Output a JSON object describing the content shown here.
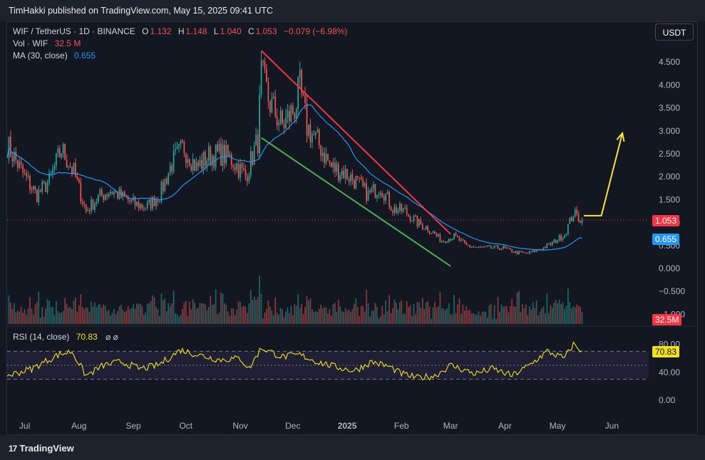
{
  "header": {
    "published_text": "TimHakki published on TradingView.com, May 15, 2025 09:41 UTC"
  },
  "legend": {
    "symbol": "WIF / TetherUS · 1D · BINANCE",
    "o_label": "O",
    "o_value": "1.132",
    "h_label": "H",
    "h_value": "1.148",
    "l_label": "L",
    "l_value": "1.040",
    "c_label": "C",
    "c_value": "1.053",
    "change": "−0.079 (−6.98%)",
    "vol_label": "Vol · WIF",
    "vol_value": "32.5 M",
    "ma_label": "MA (30, close)",
    "ma_value": "0.655",
    "rsi_label": "RSI (14, close)",
    "rsi_value": "70.83",
    "rsi_icons": "⌀ ⌀"
  },
  "currency_button": "USDT",
  "badges": {
    "price": "1.053",
    "ma": "0.655",
    "volume": "32.5M",
    "rsi": "70.83"
  },
  "footer": {
    "brand": "TradingView",
    "logo": "17"
  },
  "colors": {
    "up": "#26a69a",
    "down": "#ef5350",
    "ma": "#2962ff",
    "rsi": "#f3e01d",
    "red_line": "#f23645",
    "green_line": "#4caf50",
    "arrow": "#f5e33b"
  },
  "chart_data": [
    {
      "type": "candlestick",
      "title": "WIF / TetherUS · 1D · BINANCE",
      "x_ticks": [
        "Jul",
        "Aug",
        "Sep",
        "Oct",
        "Nov",
        "Dec",
        "2025",
        "Feb",
        "Mar",
        "Apr",
        "May",
        "Jun"
      ],
      "y_ticks": [
        "4.500",
        "4.000",
        "3.500",
        "3.000",
        "2.500",
        "2.000",
        "1.500",
        "1.000",
        "0.500",
        "0.000",
        "−0.500",
        "−1.000"
      ],
      "ylim": [
        -1.0,
        4.8
      ],
      "close_series": {
        "dates": [
          "2024-06-21",
          "2024-07-01",
          "2024-07-08",
          "2024-07-15",
          "2024-07-22",
          "2024-07-29",
          "2024-08-05",
          "2024-08-12",
          "2024-08-19",
          "2024-08-26",
          "2024-09-02",
          "2024-09-09",
          "2024-09-16",
          "2024-09-23",
          "2024-09-30",
          "2024-10-07",
          "2024-10-14",
          "2024-10-21",
          "2024-10-28",
          "2024-11-04",
          "2024-11-11",
          "2024-11-13",
          "2024-11-18",
          "2024-11-25",
          "2024-12-02",
          "2024-12-05",
          "2024-12-09",
          "2024-12-16",
          "2024-12-23",
          "2024-12-30",
          "2025-01-06",
          "2025-01-13",
          "2025-01-20",
          "2025-01-27",
          "2025-02-03",
          "2025-02-10",
          "2025-02-17",
          "2025-02-24",
          "2025-03-03",
          "2025-03-10",
          "2025-03-17",
          "2025-03-24",
          "2025-03-31",
          "2025-04-07",
          "2025-04-14",
          "2025-04-21",
          "2025-04-28",
          "2025-05-05",
          "2025-05-10",
          "2025-05-15"
        ],
        "close": [
          2.7,
          2.0,
          1.6,
          1.9,
          2.6,
          2.1,
          1.25,
          1.55,
          1.7,
          1.55,
          1.4,
          1.35,
          1.6,
          2.3,
          2.65,
          2.2,
          2.45,
          2.5,
          2.35,
          2.0,
          2.8,
          4.2,
          3.6,
          3.1,
          3.5,
          3.9,
          3.1,
          2.7,
          2.2,
          2.1,
          1.9,
          1.6,
          1.8,
          1.3,
          1.25,
          1.0,
          0.85,
          0.6,
          0.7,
          0.5,
          0.45,
          0.45,
          0.45,
          0.35,
          0.33,
          0.42,
          0.55,
          0.75,
          1.2,
          1.053
        ]
      },
      "ma30": {
        "name": "MA (30, close)",
        "last": 0.655
      },
      "last_close": 1.053,
      "drawings": {
        "red_trendline": {
          "from": [
            "2024-11-13",
            4.75
          ],
          "to": [
            "2025-03-01",
            0.75
          ]
        },
        "green_trendline": {
          "from": [
            "2024-11-13",
            2.85
          ],
          "to": [
            "2025-03-01",
            0.05
          ]
        },
        "yellow_arrow": [
          [
            "2025-05-16",
            1.15
          ],
          [
            "2025-05-26",
            1.15
          ],
          [
            "2025-06-07",
            2.95
          ]
        ]
      }
    },
    {
      "type": "bar",
      "name": "Vol · WIF",
      "last": "32.5 M"
    },
    {
      "type": "line",
      "name": "RSI (14, close)",
      "y_ticks": [
        "80.00",
        "40.00",
        "0.00"
      ],
      "bands": [
        70,
        50,
        30
      ],
      "last": 70.83,
      "series_points": {
        "dates": [
          "2024-06-21",
          "2024-07-05",
          "2024-07-20",
          "2024-07-28",
          "2024-08-05",
          "2024-08-15",
          "2024-08-25",
          "2024-09-05",
          "2024-09-15",
          "2024-09-28",
          "2024-10-08",
          "2024-10-20",
          "2024-11-01",
          "2024-11-06",
          "2024-11-13",
          "2024-11-25",
          "2024-12-05",
          "2024-12-15",
          "2024-12-25",
          "2025-01-05",
          "2025-01-15",
          "2025-01-25",
          "2025-02-01",
          "2025-02-10",
          "2025-02-20",
          "2025-03-01",
          "2025-03-15",
          "2025-03-25",
          "2025-04-05",
          "2025-04-15",
          "2025-04-25",
          "2025-05-05",
          "2025-05-10",
          "2025-05-15"
        ],
        "values": [
          35,
          45,
          65,
          70,
          35,
          50,
          55,
          45,
          50,
          72,
          65,
          58,
          60,
          45,
          75,
          62,
          65,
          55,
          48,
          42,
          55,
          48,
          38,
          32,
          35,
          50,
          38,
          45,
          35,
          50,
          70,
          60,
          80,
          70.83
        ]
      }
    }
  ]
}
